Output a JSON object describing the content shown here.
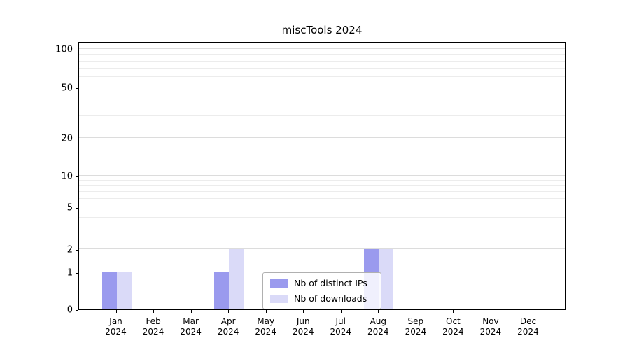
{
  "chart_data": {
    "type": "bar",
    "title": "miscTools 2024",
    "categories": [
      "Jan",
      "Feb",
      "Mar",
      "Apr",
      "May",
      "Jun",
      "Jul",
      "Aug",
      "Sep",
      "Oct",
      "Nov",
      "Dec"
    ],
    "category_year": "2024",
    "series": [
      {
        "name": "Nb of distinct IPs",
        "color": "#9a9aee",
        "values": [
          1,
          0,
          0,
          1,
          0,
          0,
          0,
          2,
          0,
          0,
          0,
          0
        ]
      },
      {
        "name": "Nb of downloads",
        "color": "#dadaf8",
        "values": [
          1,
          0,
          0,
          2,
          0,
          0,
          0,
          2,
          0,
          0,
          0,
          0
        ]
      }
    ],
    "yticks": [
      0,
      1,
      2,
      5,
      10,
      20,
      50,
      100
    ],
    "yticks_minor": [
      3,
      4,
      6,
      7,
      8,
      9,
      30,
      40,
      60,
      70,
      80,
      90
    ],
    "ylim": [
      0,
      110
    ],
    "grid": true,
    "legend_position": "lower center"
  }
}
